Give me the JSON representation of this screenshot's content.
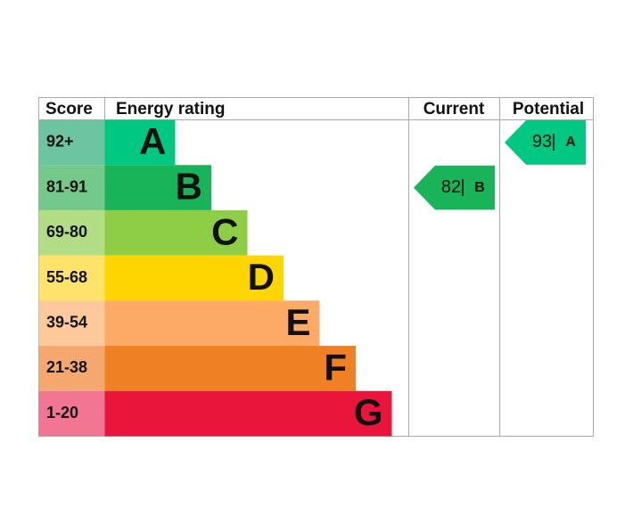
{
  "headers": {
    "score": "Score",
    "rating": "Energy rating",
    "current": "Current",
    "potential": "Potential"
  },
  "bands": [
    {
      "score": "92+",
      "letter": "A",
      "color": "#00c781",
      "score_color": "#6cc5a0"
    },
    {
      "score": "81-91",
      "letter": "B",
      "color": "#19b459",
      "score_color": "#74c98a"
    },
    {
      "score": "69-80",
      "letter": "C",
      "color": "#8dce46",
      "score_color": "#b3dd85"
    },
    {
      "score": "55-68",
      "letter": "D",
      "color": "#ffd500",
      "score_color": "#ffe26a"
    },
    {
      "score": "39-54",
      "letter": "E",
      "color": "#fcaa65",
      "score_color": "#fdc99a"
    },
    {
      "score": "21-38",
      "letter": "F",
      "color": "#ef8023",
      "score_color": "#f4a870"
    },
    {
      "score": "1-20",
      "letter": "G",
      "color": "#e9153b",
      "score_color": "#f27693"
    }
  ],
  "current": {
    "score": 82,
    "separator": "|",
    "letter": "B"
  },
  "potential": {
    "score": 93,
    "separator": "|",
    "letter": "A"
  }
}
